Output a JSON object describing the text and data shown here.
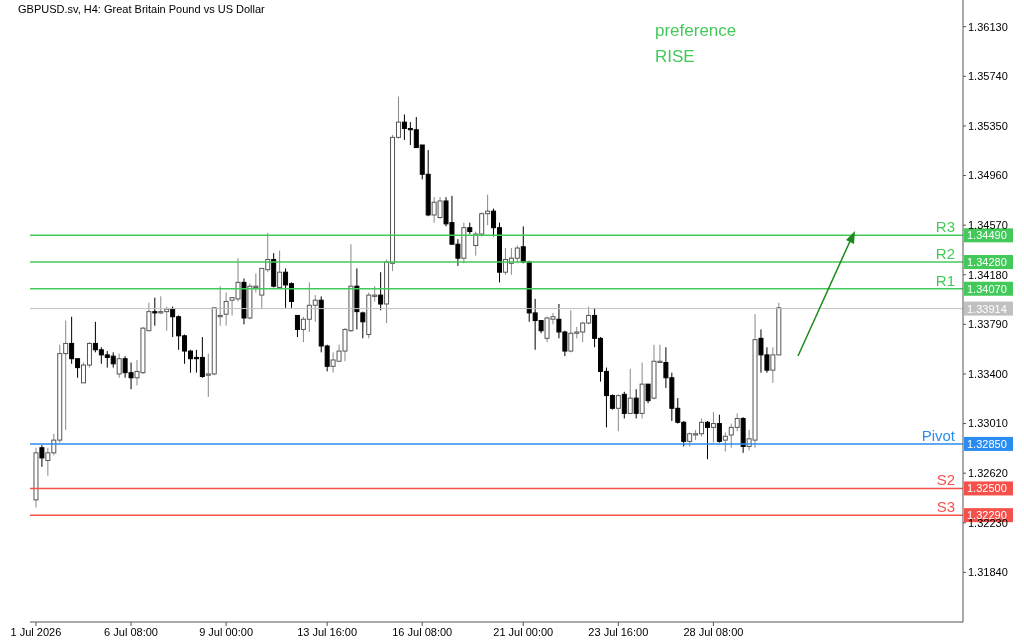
{
  "chart_data": {
    "type": "candlestick",
    "title": "GBPUSD.sv, H4:  Great Britain Pound vs US Dollar",
    "annotations": [
      "preference",
      "RISE",
      "1.34490",
      "1.34280",
      "1.34070",
      "1.33914",
      "1.32850",
      "1.32500",
      "1.32290"
    ],
    "categories": [
      "1 Jul 2026",
      null,
      null,
      null,
      null,
      null,
      null,
      null,
      null,
      null,
      null,
      null,
      null,
      null,
      null,
      null,
      "6 Jul 08:00",
      null,
      null,
      null,
      null,
      null,
      null,
      null,
      null,
      null,
      null,
      null,
      null,
      null,
      null,
      null,
      "9 Jul 00:00",
      null,
      null,
      null,
      null,
      null,
      null,
      null,
      null,
      null,
      null,
      null,
      null,
      null,
      null,
      null,
      null,
      "13 Jul 16:00",
      null,
      null,
      null,
      null,
      null,
      null,
      null,
      null,
      null,
      null,
      null,
      null,
      null,
      null,
      null,
      "16 Jul 08:00",
      null,
      null,
      null,
      null,
      null,
      null,
      null,
      null,
      null,
      null,
      null,
      null,
      null,
      null,
      null,
      null,
      "21 Jul 00:00",
      null,
      null,
      null,
      null,
      null,
      null,
      null,
      null,
      null,
      null,
      null,
      null,
      null,
      null,
      null,
      "23 Jul 16:00",
      null,
      null,
      null,
      null,
      null,
      null,
      null,
      null,
      null,
      null,
      null,
      null,
      null,
      null,
      null,
      "28 Jul 08:00",
      null,
      null,
      null,
      null,
      null,
      null,
      null,
      null,
      null,
      null,
      null,
      null,
      null,
      null,
      null,
      null,
      null,
      null,
      null,
      null,
      null,
      null,
      null,
      null,
      null,
      null,
      null,
      null,
      null,
      null,
      null,
      null,
      null,
      null,
      null,
      null,
      null,
      null,
      null,
      null,
      null,
      null
    ],
    "ohlc": [
      [
        1.3241,
        1.3282,
        1.3235,
        1.3278
      ],
      [
        1.3282,
        1.3284,
        1.3267,
        1.3274
      ],
      [
        1.3272,
        1.3282,
        1.326,
        1.3278
      ],
      [
        1.3278,
        1.3293,
        1.3276,
        1.3288
      ],
      [
        1.3288,
        1.3363,
        1.3286,
        1.3356
      ],
      [
        1.3356,
        1.3382,
        1.3296,
        1.3364
      ],
      [
        1.3364,
        1.3385,
        1.3348,
        1.3352
      ],
      [
        1.3352,
        1.3352,
        1.3337,
        1.3345
      ],
      [
        1.3333,
        1.3349,
        1.3333,
        1.3347
      ],
      [
        1.3347,
        1.3365,
        1.3345,
        1.3364
      ],
      [
        1.3364,
        1.3381,
        1.3357,
        1.3359
      ],
      [
        1.3359,
        1.3361,
        1.3348,
        1.3355
      ],
      [
        1.3355,
        1.3358,
        1.3345,
        1.3353
      ],
      [
        1.3354,
        1.3357,
        1.3345,
        1.3348
      ],
      [
        1.334,
        1.3356,
        1.3337,
        1.3352
      ],
      [
        1.3352,
        1.3354,
        1.3337,
        1.3341
      ],
      [
        1.3341,
        1.3349,
        1.3328,
        1.3337
      ],
      [
        1.3337,
        1.3351,
        1.3331,
        1.3342
      ],
      [
        1.3341,
        1.3377,
        1.334,
        1.3376
      ],
      [
        1.3374,
        1.3396,
        1.3374,
        1.3389
      ],
      [
        1.3389,
        1.34,
        1.3378,
        1.3388
      ],
      [
        1.3388,
        1.3401,
        1.3387,
        1.3389
      ],
      [
        1.3389,
        1.3393,
        1.3374,
        1.3391
      ],
      [
        1.3391,
        1.3393,
        1.3369,
        1.3385
      ],
      [
        1.3385,
        1.3386,
        1.3359,
        1.337
      ],
      [
        1.337,
        1.3371,
        1.3348,
        1.3358
      ],
      [
        1.3358,
        1.3359,
        1.3341,
        1.3352
      ],
      [
        1.3353,
        1.3359,
        1.3341,
        1.3352
      ],
      [
        1.3353,
        1.3369,
        1.3337,
        1.3338
      ],
      [
        1.3339,
        1.3356,
        1.3322,
        1.334
      ],
      [
        1.334,
        1.3392,
        1.3339,
        1.3392
      ],
      [
        1.3385,
        1.3409,
        1.3378,
        1.3386
      ],
      [
        1.3387,
        1.3404,
        1.3378,
        1.3397
      ],
      [
        1.3398,
        1.34,
        1.3386,
        1.34
      ],
      [
        1.3399,
        1.3431,
        1.3397,
        1.3412
      ],
      [
        1.3412,
        1.3415,
        1.3379,
        1.3384
      ],
      [
        1.3384,
        1.3411,
        1.3383,
        1.3409
      ],
      [
        1.3408,
        1.3419,
        1.3404,
        1.3409
      ],
      [
        1.3402,
        1.3423,
        1.3391,
        1.3423
      ],
      [
        1.3422,
        1.3451,
        1.342,
        1.343
      ],
      [
        1.343,
        1.3435,
        1.3408,
        1.3409
      ],
      [
        1.3408,
        1.3437,
        1.3408,
        1.342
      ],
      [
        1.342,
        1.3423,
        1.3392,
        1.341
      ],
      [
        1.3411,
        1.3412,
        1.3392,
        1.3397
      ],
      [
        1.3386,
        1.3386,
        1.3369,
        1.3375
      ],
      [
        1.3375,
        1.3385,
        1.3365,
        1.3383
      ],
      [
        1.3383,
        1.3412,
        1.3373,
        1.3394
      ],
      [
        1.3394,
        1.3402,
        1.3381,
        1.3398
      ],
      [
        1.3398,
        1.3401,
        1.3357,
        1.3362
      ],
      [
        1.3362,
        1.3363,
        1.3342,
        1.3346
      ],
      [
        1.3346,
        1.3357,
        1.3341,
        1.3351
      ],
      [
        1.335,
        1.3363,
        1.335,
        1.3358
      ],
      [
        1.3358,
        1.3376,
        1.335,
        1.3375
      ],
      [
        1.3374,
        1.3442,
        1.3373,
        1.3409
      ],
      [
        1.3409,
        1.3423,
        1.3375,
        1.3389
      ],
      [
        1.3388,
        1.3389,
        1.3368,
        1.3381
      ],
      [
        1.3371,
        1.3404,
        1.3368,
        1.3402
      ],
      [
        1.3401,
        1.3409,
        1.3397,
        1.3402
      ],
      [
        1.3402,
        1.342,
        1.339,
        1.3395
      ],
      [
        1.3395,
        1.343,
        1.338,
        1.3428
      ],
      [
        1.3427,
        1.3528,
        1.3421,
        1.3526
      ],
      [
        1.3526,
        1.3558,
        1.3525,
        1.3538
      ],
      [
        1.3538,
        1.3544,
        1.3524,
        1.3533
      ],
      [
        1.3533,
        1.3538,
        1.352,
        1.3532
      ],
      [
        1.3532,
        1.3542,
        1.3518,
        1.3518
      ],
      [
        1.352,
        1.352,
        1.3493,
        1.3497
      ],
      [
        1.3497,
        1.3516,
        1.3464,
        1.3465
      ],
      [
        1.3465,
        1.3479,
        1.3459,
        1.3475
      ],
      [
        1.3463,
        1.3479,
        1.3462,
        1.3476
      ],
      [
        1.3476,
        1.3479,
        1.3456,
        1.3458
      ],
      [
        1.3459,
        1.348,
        1.3442,
        1.3442
      ],
      [
        1.3442,
        1.3446,
        1.3425,
        1.3431
      ],
      [
        1.3431,
        1.3459,
        1.3427,
        1.3455
      ],
      [
        1.3455,
        1.3459,
        1.345,
        1.3452
      ],
      [
        1.3441,
        1.3452,
        1.3433,
        1.345
      ],
      [
        1.345,
        1.3467,
        1.3448,
        1.3466
      ],
      [
        1.3466,
        1.3481,
        1.3457,
        1.3468
      ],
      [
        1.3468,
        1.347,
        1.3448,
        1.3455
      ],
      [
        1.3455,
        1.3459,
        1.3412,
        1.342
      ],
      [
        1.342,
        1.3439,
        1.3418,
        1.343
      ],
      [
        1.3427,
        1.3439,
        1.3418,
        1.3431
      ],
      [
        1.3431,
        1.3441,
        1.3427,
        1.3439
      ],
      [
        1.344,
        1.3456,
        1.3427,
        1.3428
      ],
      [
        1.3428,
        1.3429,
        1.3381,
        1.3388
      ],
      [
        1.3388,
        1.3399,
        1.3359,
        1.3382
      ],
      [
        1.3382,
        1.3382,
        1.3372,
        1.3374
      ],
      [
        1.3368,
        1.3385,
        1.3365,
        1.3384
      ],
      [
        1.3383,
        1.3388,
        1.3379,
        1.3385
      ],
      [
        1.3383,
        1.3395,
        1.3368,
        1.3373
      ],
      [
        1.3373,
        1.3374,
        1.3354,
        1.3358
      ],
      [
        1.3358,
        1.339,
        1.3357,
        1.3372
      ],
      [
        1.3372,
        1.3377,
        1.3368,
        1.3373
      ],
      [
        1.3373,
        1.3381,
        1.3365,
        1.338
      ],
      [
        1.338,
        1.3393,
        1.3379,
        1.3386
      ],
      [
        1.3386,
        1.3392,
        1.3361,
        1.3368
      ],
      [
        1.3368,
        1.3369,
        1.3334,
        1.3342
      ],
      [
        1.3342,
        1.3345,
        1.3298,
        1.3323
      ],
      [
        1.3323,
        1.3324,
        1.3312,
        1.3313
      ],
      [
        1.3313,
        1.3324,
        1.3295,
        1.3323
      ],
      [
        1.3324,
        1.3326,
        1.3305,
        1.3309
      ],
      [
        1.3309,
        1.3344,
        1.3309,
        1.3321
      ],
      [
        1.3321,
        1.3328,
        1.3305,
        1.3309
      ],
      [
        1.3309,
        1.3349,
        1.3305,
        1.3332
      ],
      [
        1.3332,
        1.3332,
        1.3317,
        1.3319
      ],
      [
        1.3321,
        1.3363,
        1.332,
        1.335
      ],
      [
        1.3349,
        1.3363,
        1.3349,
        1.335
      ],
      [
        1.3349,
        1.3361,
        1.3329,
        1.3337
      ],
      [
        1.3337,
        1.3341,
        1.3303,
        1.3313
      ],
      [
        1.3313,
        1.3321,
        1.3301,
        1.3302
      ],
      [
        1.3302,
        1.3303,
        1.3283,
        1.3287
      ],
      [
        1.3287,
        1.3294,
        1.3283,
        1.3293
      ],
      [
        1.3292,
        1.3296,
        1.3288,
        1.3293
      ],
      [
        1.3293,
        1.3305,
        1.3291,
        1.3302
      ],
      [
        1.3302,
        1.3303,
        1.3273,
        1.3298
      ],
      [
        1.3298,
        1.331,
        1.3286,
        1.3301
      ],
      [
        1.3301,
        1.3308,
        1.3286,
        1.3287
      ],
      [
        1.3288,
        1.3294,
        1.3279,
        1.3291
      ],
      [
        1.3292,
        1.3301,
        1.3282,
        1.3298
      ],
      [
        1.3298,
        1.3309,
        1.3295,
        1.3305
      ],
      [
        1.3305,
        1.3306,
        1.3278,
        1.3283
      ],
      [
        1.3283,
        1.3296,
        1.328,
        1.3289
      ],
      [
        1.3288,
        1.3387,
        1.3282,
        1.3367
      ],
      [
        1.3368,
        1.3375,
        1.3341,
        1.3355
      ],
      [
        1.3355,
        1.3361,
        1.3341,
        1.3343
      ],
      [
        1.3343,
        1.3361,
        1.3333,
        1.3355
      ],
      [
        1.3355,
        1.3396,
        1.3355,
        1.3392
      ],
      null,
      null,
      null,
      null,
      null,
      null,
      null,
      null,
      null,
      null,
      null,
      null,
      null,
      null,
      null,
      null,
      null,
      null,
      null,
      null,
      null,
      null,
      null,
      null,
      null,
      null,
      null,
      null,
      null,
      null,
      null
    ],
    "ylim": [
      1.3145,
      1.3634
    ],
    "yticks": [
      {
        "value": 1.3613,
        "label": "1.36130"
      },
      {
        "value": 1.3574,
        "label": "1.35740"
      },
      {
        "value": 1.3535,
        "label": "1.35350"
      },
      {
        "value": 1.3496,
        "label": "1.34960"
      },
      {
        "value": 1.3457,
        "label": "1.34570"
      },
      {
        "value": 1.3418,
        "label": "1.34180"
      },
      {
        "value": 1.3379,
        "label": "1.33790"
      },
      {
        "value": 1.334,
        "label": "1.33400"
      },
      {
        "value": 1.3301,
        "label": "1.33010"
      },
      {
        "value": 1.3262,
        "label": "1.32620"
      },
      {
        "value": 1.3223,
        "label": "1.32230"
      },
      {
        "value": 1.3184,
        "label": "1.31840"
      }
    ],
    "ref_lines": [
      {
        "axis": "y",
        "value": 1.3449,
        "label": "R3",
        "color": "#43c95a"
      },
      {
        "axis": "y",
        "value": 1.3428,
        "label": "R2",
        "color": "#43c95a"
      },
      {
        "axis": "y",
        "value": 1.3407,
        "label": "R1",
        "color": "#43c95a"
      },
      {
        "axis": "y",
        "value": 1.33914,
        "label": null,
        "color": "#c0c0c0"
      },
      {
        "axis": "y",
        "value": 1.3285,
        "label": "Pivot",
        "color": "#2a8cf0"
      },
      {
        "axis": "y",
        "value": 1.325,
        "label": "S2",
        "color": "#f5504a"
      },
      {
        "axis": "y",
        "value": 1.3229,
        "label": "S3",
        "color": "#f5504a"
      }
    ],
    "grid": false,
    "legend": false
  }
}
